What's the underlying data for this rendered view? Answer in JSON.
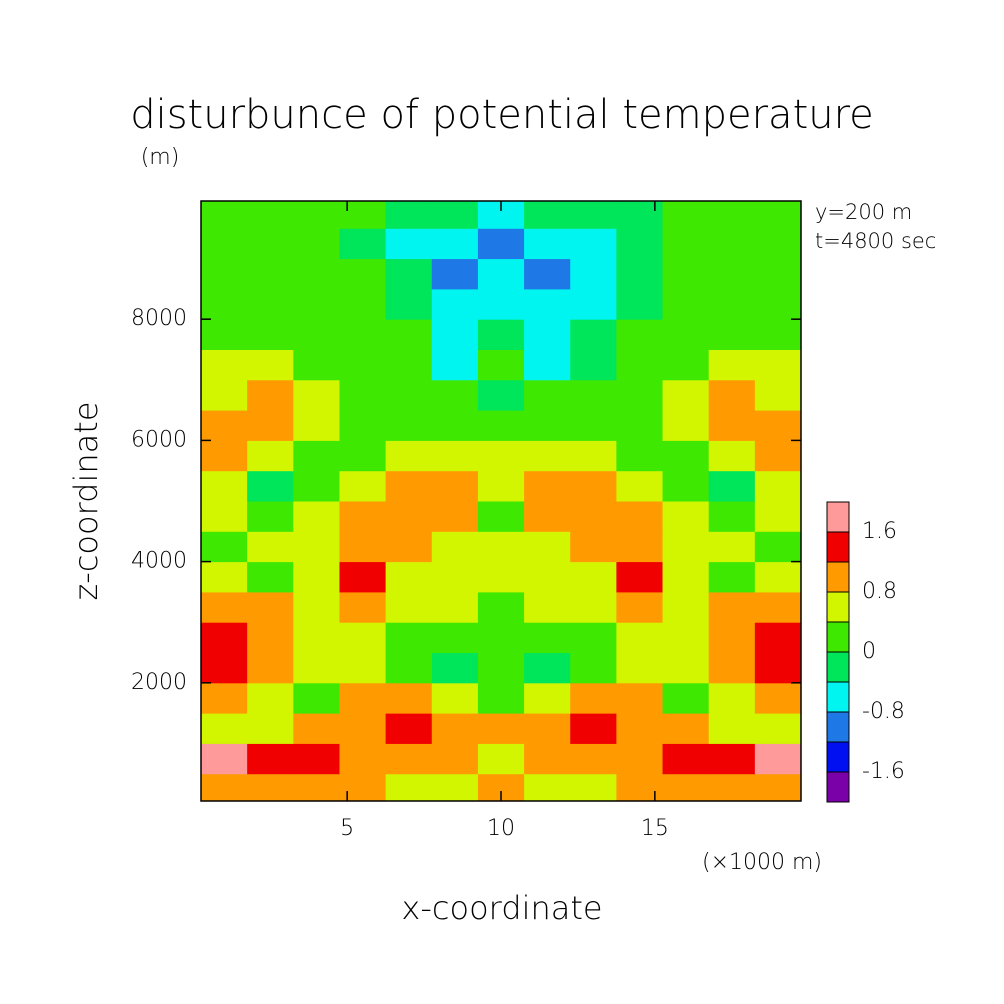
{
  "chart_data": {
    "type": "contourf",
    "title": "disturbunce of potential temperature",
    "y_unit": "(m)",
    "annotations": [
      "y=200 m",
      "t=4800 sec"
    ],
    "xlabel": "x-coordinate",
    "ylabel": "z-coordinate",
    "x_unit": "(×1000 m)",
    "xlim": [
      0.25,
      19.75
    ],
    "xticks": [
      5,
      10,
      15
    ],
    "ylim": [
      50,
      9950
    ],
    "yticks": [
      2000,
      4000,
      6000,
      8000
    ],
    "x": [
      1,
      2.5,
      4,
      5.5,
      7,
      8.5,
      10,
      11.5,
      13,
      14.5,
      16,
      17.5,
      19
    ],
    "y": [
      250,
      750,
      1250,
      1750,
      2250,
      2750,
      3250,
      3750,
      4250,
      4750,
      5250,
      5750,
      6250,
      6750,
      7250,
      7750,
      8250,
      8750,
      9250,
      9750
    ],
    "z": [
      [
        1.0,
        1.0,
        1.0,
        1.0,
        0.6,
        0.6,
        1.0,
        0.6,
        0.6,
        1.0,
        1.0,
        1.0,
        1.0
      ],
      [
        1.8,
        1.4,
        1.4,
        1.0,
        1.0,
        1.0,
        0.6,
        1.0,
        1.0,
        1.0,
        1.4,
        1.4,
        1.8
      ],
      [
        0.6,
        0.6,
        1.0,
        1.0,
        1.4,
        1.0,
        1.0,
        1.0,
        1.4,
        1.0,
        1.0,
        0.6,
        0.6
      ],
      [
        1.0,
        0.6,
        0.2,
        1.0,
        1.0,
        0.6,
        0.2,
        0.6,
        1.0,
        1.0,
        0.2,
        0.6,
        1.0
      ],
      [
        1.4,
        1.0,
        0.6,
        0.6,
        0.2,
        -0.2,
        0.2,
        -0.2,
        0.2,
        0.6,
        0.6,
        1.0,
        1.4
      ],
      [
        1.4,
        1.0,
        0.6,
        0.6,
        0.2,
        0.2,
        0.2,
        0.2,
        0.2,
        0.6,
        0.6,
        1.0,
        1.4
      ],
      [
        1.0,
        1.0,
        0.6,
        1.0,
        0.6,
        0.6,
        0.2,
        0.6,
        0.6,
        1.0,
        0.6,
        1.0,
        1.0
      ],
      [
        0.6,
        0.2,
        0.6,
        1.4,
        0.6,
        0.6,
        0.6,
        0.6,
        0.6,
        1.4,
        0.6,
        0.2,
        0.6
      ],
      [
        0.2,
        0.6,
        0.6,
        1.0,
        1.0,
        0.6,
        0.6,
        0.6,
        1.0,
        1.0,
        0.6,
        0.6,
        0.2
      ],
      [
        0.6,
        0.2,
        0.6,
        1.0,
        1.0,
        1.0,
        0.2,
        1.0,
        1.0,
        1.0,
        0.6,
        0.2,
        0.6
      ],
      [
        0.6,
        -0.2,
        0.2,
        0.6,
        1.0,
        1.0,
        0.6,
        1.0,
        1.0,
        0.6,
        0.2,
        -0.2,
        0.6
      ],
      [
        1.0,
        0.6,
        0.2,
        0.2,
        0.6,
        0.6,
        0.6,
        0.6,
        0.6,
        0.2,
        0.2,
        0.6,
        1.0
      ],
      [
        1.0,
        1.0,
        0.6,
        0.2,
        0.2,
        0.2,
        0.2,
        0.2,
        0.2,
        0.2,
        0.6,
        1.0,
        1.0
      ],
      [
        0.6,
        1.0,
        0.6,
        0.2,
        0.2,
        0.2,
        -0.2,
        0.2,
        0.2,
        0.2,
        0.6,
        1.0,
        0.6
      ],
      [
        0.6,
        0.6,
        0.2,
        0.2,
        0.2,
        -0.6,
        0.2,
        -0.6,
        -0.2,
        0.2,
        0.2,
        0.6,
        0.6
      ],
      [
        0.2,
        0.2,
        0.2,
        0.2,
        0.2,
        -0.6,
        -0.2,
        -0.6,
        -0.2,
        0.2,
        0.2,
        0.2,
        0.2
      ],
      [
        0.2,
        0.2,
        0.2,
        0.2,
        -0.2,
        -0.6,
        -0.6,
        -0.6,
        -0.6,
        -0.2,
        0.2,
        0.2,
        0.2
      ],
      [
        0.2,
        0.2,
        0.2,
        0.2,
        -0.2,
        -1.0,
        -0.6,
        -1.0,
        -0.6,
        -0.2,
        0.2,
        0.2,
        0.2
      ],
      [
        0.2,
        0.2,
        0.2,
        -0.2,
        -0.6,
        -0.6,
        -1.0,
        -0.6,
        -0.6,
        -0.2,
        0.2,
        0.2,
        0.2
      ],
      [
        0.2,
        0.2,
        0.2,
        0.2,
        -0.2,
        -0.2,
        -0.6,
        -0.2,
        -0.2,
        -0.2,
        0.2,
        0.2,
        0.2
      ]
    ],
    "colorbar": {
      "clim": [
        -2.0,
        2.0
      ],
      "levels": [
        -1.6,
        -1.2,
        -0.8,
        -0.4,
        0,
        0.4,
        0.8,
        1.2,
        1.6
      ],
      "colors": [
        "#7a00a8",
        "#0010f0",
        "#1e78e6",
        "#00f5f0",
        "#00e65a",
        "#3ee800",
        "#d2f500",
        "#ff9a00",
        "#f00000",
        "#ff9a9a"
      ],
      "ticks": [
        -1.6,
        -0.8,
        0,
        0.8,
        1.6
      ]
    }
  }
}
